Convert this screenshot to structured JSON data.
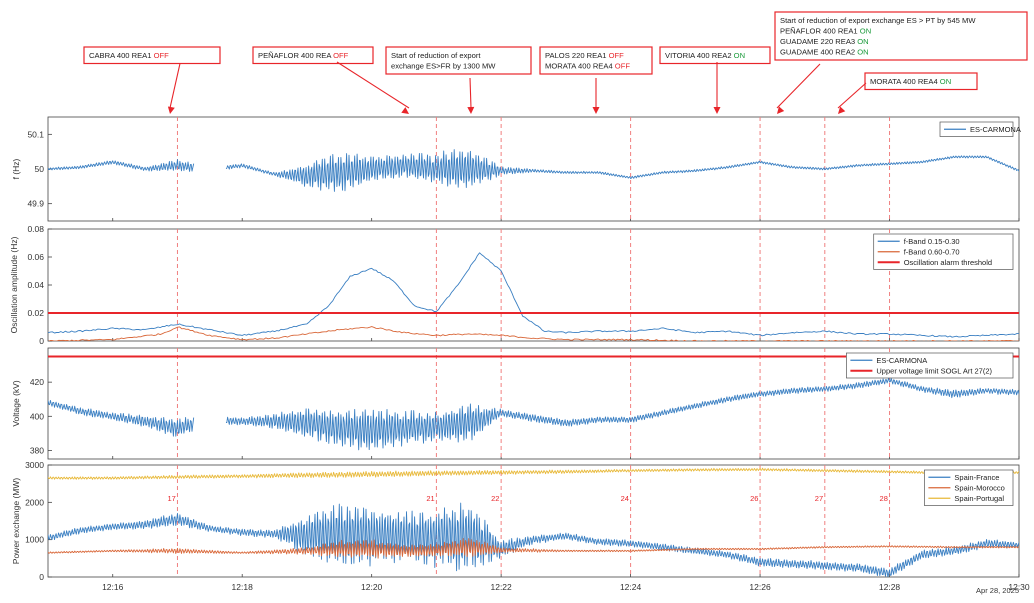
{
  "colors": {
    "blue": "#3a7fc2",
    "orange": "#d9683a",
    "yellow": "#e8b93a",
    "red": "#e8252a",
    "dashed_red": "#f08080",
    "green": "#1a9a3a",
    "axis": "#444444",
    "grid": "#e6e6e6"
  },
  "date_label": "Apr 28, 2025",
  "annotations": [
    {
      "lines": [
        [
          {
            "t": "CABRA  400  REA1  "
          },
          {
            "t": "OFF",
            "c": "red"
          }
        ]
      ],
      "x": "12:17"
    },
    {
      "lines": [
        [
          {
            "t": "PEÑAFLOR  400  REA  "
          },
          {
            "t": "OFF",
            "c": "red"
          }
        ]
      ],
      "x": "12:21"
    },
    {
      "lines": [
        [
          {
            "t": "Start  of  reduction  of  export"
          }
        ],
        [
          {
            "t": "exchange ES>FR  by  1300  MW"
          }
        ]
      ],
      "x": "12:22"
    },
    {
      "lines": [
        [
          {
            "t": "PALOS  220  REA1  "
          },
          {
            "t": "OFF",
            "c": "red"
          }
        ],
        [
          {
            "t": "MORATA  400  REA4  "
          },
          {
            "t": "OFF",
            "c": "red"
          }
        ]
      ],
      "x": "12:24"
    },
    {
      "lines": [
        [
          {
            "t": "VITORIA  400  REA2  "
          },
          {
            "t": "ON",
            "c": "green"
          }
        ]
      ],
      "x": "12:26"
    },
    {
      "lines": [
        [
          {
            "t": "Start  of  reduction  of  export  exchange  ES  >  PT  by  545  MW"
          }
        ],
        [
          {
            "t": "PEÑAFLOR  400  REA1  "
          },
          {
            "t": "ON",
            "c": "green"
          }
        ],
        [
          {
            "t": "GUADAME  220  REA3  "
          },
          {
            "t": "ON",
            "c": "green"
          }
        ],
        [
          {
            "t": "GUADAME  400  REA2  "
          },
          {
            "t": "ON",
            "c": "green"
          }
        ]
      ],
      "x": "12:27"
    },
    {
      "lines": [
        [
          {
            "t": "MORATA  400  REA4  "
          },
          {
            "t": "ON",
            "c": "green"
          }
        ]
      ],
      "x": "12:28"
    }
  ],
  "event_numbers": [
    {
      "label": "17",
      "x": "12:17"
    },
    {
      "label": "21",
      "x": "12:21"
    },
    {
      "label": "22",
      "x": "12:22"
    },
    {
      "label": "24",
      "x": "12:24"
    },
    {
      "label": "26",
      "x": "12:26"
    },
    {
      "label": "27",
      "x": "12:27"
    },
    {
      "label": "28",
      "x": "12:28"
    }
  ],
  "chart_data": [
    {
      "type": "line",
      "id": "frequency",
      "ylabel": "f (Hz)",
      "ylim": [
        49.85,
        50.15
      ],
      "yticks": [
        "49.9",
        "50",
        "50.1"
      ],
      "xlim": [
        "12:15",
        "12:30"
      ],
      "legend": [
        "ES-CARMONA"
      ],
      "legend_position": "top-right",
      "series": [
        {
          "name": "ES-CARMONA",
          "color": "blue",
          "kind": "envelope",
          "x": [
            "12:15",
            "12:15:30",
            "12:16",
            "12:16:30",
            "12:17",
            "12:17:30",
            "12:18",
            "12:18:30",
            "12:19",
            "12:19:30",
            "12:20",
            "12:20:30",
            "12:21",
            "12:21:30",
            "12:22",
            "12:22:30",
            "12:23",
            "12:23:30",
            "12:24",
            "12:24:30",
            "12:25",
            "12:25:30",
            "12:26",
            "12:26:30",
            "12:27",
            "12:27:30",
            "12:28",
            "12:28:30",
            "12:29",
            "12:29:30",
            "12:30"
          ],
          "mid": [
            50.0,
            50.005,
            50.02,
            50.0,
            50.01,
            50.0,
            50.01,
            49.985,
            49.98,
            49.99,
            50.0,
            50.01,
            50.0,
            50.0,
            49.995,
            49.995,
            49.99,
            49.99,
            49.975,
            49.99,
            49.995,
            50.005,
            50.02,
            50.005,
            50.0,
            50.01,
            50.015,
            50.02,
            50.035,
            50.035,
            49.995
          ],
          "amp": [
            0.003,
            0.004,
            0.005,
            0.005,
            0.015,
            0.006,
            0.005,
            0.004,
            0.03,
            0.05,
            0.035,
            0.03,
            0.04,
            0.055,
            0.012,
            0.004,
            0.003,
            0.003,
            0.003,
            0.003,
            0.003,
            0.003,
            0.003,
            0.003,
            0.003,
            0.003,
            0.003,
            0.003,
            0.003,
            0.003,
            0.003
          ]
        }
      ],
      "gaps": [
        [
          "12:17:15",
          "12:17:45"
        ]
      ]
    },
    {
      "type": "line",
      "id": "oscillation",
      "ylabel": "Oscillation amplitude (Hz)",
      "ylim": [
        0,
        0.08
      ],
      "yticks": [
        "0",
        "0.02",
        "0.04",
        "0.06",
        "0.08"
      ],
      "xlim": [
        "12:15",
        "12:30"
      ],
      "legend": [
        "f-Band 0.15-0.30",
        "f-Band 0.60-0.70",
        "Oscillation alarm threshold"
      ],
      "legend_position": "top-right",
      "series": [
        {
          "name": "f-Band 0.15-0.30",
          "color": "blue",
          "x": [
            "12:15",
            "12:15:30",
            "12:16",
            "12:16:30",
            "12:17",
            "12:17:30",
            "12:18",
            "12:18:30",
            "12:19",
            "12:19:20",
            "12:19:40",
            "12:20",
            "12:20:20",
            "12:20:40",
            "12:21",
            "12:21:20",
            "12:21:40",
            "12:22",
            "12:22:20",
            "12:22:40",
            "12:23",
            "12:23:30",
            "12:24",
            "12:24:30",
            "12:25",
            "12:25:30",
            "12:26",
            "12:26:30",
            "12:27",
            "12:27:30",
            "12:28",
            "12:28:30",
            "12:29",
            "12:29:30",
            "12:30"
          ],
          "y": [
            0.006,
            0.007,
            0.009,
            0.008,
            0.012,
            0.008,
            0.004,
            0.007,
            0.012,
            0.025,
            0.046,
            0.052,
            0.043,
            0.025,
            0.021,
            0.04,
            0.063,
            0.05,
            0.018,
            0.007,
            0.006,
            0.007,
            0.007,
            0.009,
            0.006,
            0.007,
            0.004,
            0.006,
            0.007,
            0.005,
            0.005,
            0.004,
            0.003,
            0.004,
            0.005
          ]
        },
        {
          "name": "f-Band 0.60-0.70",
          "color": "orange",
          "x": [
            "12:15",
            "12:16",
            "12:16:45",
            "12:17",
            "12:17:30",
            "12:18",
            "12:18:30",
            "12:19",
            "12:19:30",
            "12:20",
            "12:20:30",
            "12:21",
            "12:21:30",
            "12:22",
            "12:22:30",
            "12:23",
            "12:24",
            "12:25",
            "12:26",
            "12:27",
            "12:28",
            "12:29",
            "12:30"
          ],
          "y": [
            0.0,
            0.001,
            0.005,
            0.01,
            0.004,
            0.001,
            0.002,
            0.005,
            0.008,
            0.01,
            0.006,
            0.004,
            0.005,
            0.004,
            0.002,
            0.001,
            0.001,
            0.0,
            0.0,
            0.0,
            0.0,
            0.0,
            0.0
          ]
        },
        {
          "name": "Oscillation alarm threshold",
          "color": "red",
          "x": [
            "12:15",
            "12:30"
          ],
          "y": [
            0.02,
            0.02
          ]
        }
      ]
    },
    {
      "type": "line",
      "id": "voltage",
      "ylabel": "Voltage (kV)",
      "ylim": [
        375,
        440
      ],
      "yticks": [
        "380",
        "400",
        "420"
      ],
      "xlim": [
        "12:15",
        "12:30"
      ],
      "legend": [
        "ES-CARMONA",
        "Upper voltage limit SOGL Art 27(2)"
      ],
      "legend_position": "top-right",
      "series": [
        {
          "name": "ES-CARMONA",
          "color": "blue",
          "kind": "envelope",
          "x": [
            "12:15",
            "12:15:30",
            "12:16",
            "12:16:30",
            "12:17",
            "12:17:30",
            "12:18",
            "12:18:30",
            "12:19",
            "12:19:30",
            "12:20",
            "12:20:30",
            "12:21",
            "12:21:30",
            "12:22",
            "12:22:30",
            "12:23",
            "12:23:30",
            "12:24",
            "12:24:30",
            "12:25",
            "12:25:30",
            "12:26",
            "12:26:30",
            "12:27",
            "12:27:30",
            "12:28",
            "12:28:30",
            "12:29",
            "12:29:30",
            "12:30"
          ],
          "mid": [
            408,
            403,
            400,
            397,
            393,
            398,
            397,
            397,
            396,
            393,
            392,
            393,
            394,
            396,
            402,
            399,
            396,
            398,
            398,
            402,
            406,
            410,
            413,
            415,
            416,
            418,
            421,
            416,
            413,
            415,
            414
          ],
          "amp": [
            1.5,
            2,
            2,
            3,
            5,
            2,
            2,
            4,
            8,
            10,
            11,
            9,
            8,
            10,
            2,
            2,
            2,
            1.5,
            1.5,
            1.5,
            1.5,
            1.5,
            1.5,
            1.5,
            1.5,
            1.5,
            1.5,
            1.5,
            2,
            1.5,
            1.5
          ]
        },
        {
          "name": "Upper voltage limit SOGL Art 27(2)",
          "color": "red",
          "x": [
            "12:15",
            "12:30"
          ],
          "y": [
            435,
            435
          ]
        }
      ],
      "gaps": [
        [
          "12:17:15",
          "12:17:45"
        ]
      ]
    },
    {
      "type": "line",
      "id": "power",
      "ylabel": "Power exchange (MW)",
      "ylim": [
        0,
        3000
      ],
      "yticks": [
        "0",
        "1000",
        "2000",
        "3000"
      ],
      "xlim": [
        "12:15",
        "12:30"
      ],
      "xticks": [
        "12:16",
        "12:18",
        "12:20",
        "12:22",
        "12:24",
        "12:26",
        "12:28",
        "12:30"
      ],
      "legend": [
        "Spain-France",
        "Spain-Morocco",
        "Spain-Portugal"
      ],
      "legend_position": "top-right",
      "series": [
        {
          "name": "Spain-France",
          "color": "blue",
          "kind": "envelope",
          "x": [
            "12:15",
            "12:15:30",
            "12:16",
            "12:16:30",
            "12:17",
            "12:17:30",
            "12:18",
            "12:18:30",
            "12:19",
            "12:19:30",
            "12:20",
            "12:20:30",
            "12:21",
            "12:21:30",
            "12:22",
            "12:22:30",
            "12:23",
            "12:23:30",
            "12:24",
            "12:24:30",
            "12:25",
            "12:25:30",
            "12:26",
            "12:26:30",
            "12:27",
            "12:27:30",
            "12:28",
            "12:28:30",
            "12:29",
            "12:29:30",
            "12:30"
          ],
          "mid": [
            1050,
            1250,
            1350,
            1400,
            1550,
            1300,
            1200,
            1150,
            1100,
            1150,
            1100,
            1050,
            1050,
            1100,
            750,
            1000,
            1100,
            950,
            900,
            800,
            700,
            600,
            400,
            350,
            300,
            250,
            100,
            600,
            700,
            900,
            850
          ],
          "amp": [
            80,
            80,
            80,
            100,
            150,
            80,
            80,
            100,
            500,
            800,
            700,
            600,
            700,
            900,
            200,
            100,
            80,
            80,
            80,
            80,
            80,
            80,
            100,
            100,
            100,
            100,
            120,
            100,
            100,
            100,
            80
          ]
        },
        {
          "name": "Spain-Morocco",
          "color": "orange",
          "kind": "envelope",
          "x": [
            "12:15",
            "12:16",
            "12:17",
            "12:18",
            "12:19",
            "12:19:30",
            "12:20",
            "12:20:30",
            "12:21",
            "12:21:30",
            "12:22",
            "12:23",
            "12:24",
            "12:25",
            "12:26",
            "12:27",
            "12:28",
            "12:29",
            "12:30"
          ],
          "mid": [
            650,
            700,
            700,
            650,
            700,
            750,
            750,
            700,
            720,
            800,
            720,
            700,
            700,
            750,
            750,
            800,
            820,
            800,
            800
          ],
          "amp": [
            20,
            20,
            60,
            20,
            80,
            200,
            220,
            150,
            150,
            250,
            60,
            20,
            20,
            20,
            20,
            20,
            20,
            20,
            20
          ]
        },
        {
          "name": "Spain-Portugal",
          "color": "yellow",
          "kind": "envelope",
          "x": [
            "12:15",
            "12:16",
            "12:17",
            "12:18",
            "12:19",
            "12:20",
            "12:21",
            "12:22",
            "12:23",
            "12:24",
            "12:25",
            "12:26",
            "12:27",
            "12:28",
            "12:29",
            "12:30"
          ],
          "mid": [
            2650,
            2650,
            2680,
            2700,
            2730,
            2750,
            2780,
            2800,
            2820,
            2850,
            2870,
            2880,
            2850,
            2820,
            2780,
            2800
          ],
          "amp": [
            30,
            30,
            40,
            40,
            60,
            70,
            60,
            50,
            40,
            30,
            30,
            30,
            30,
            30,
            30,
            30
          ]
        }
      ]
    }
  ]
}
